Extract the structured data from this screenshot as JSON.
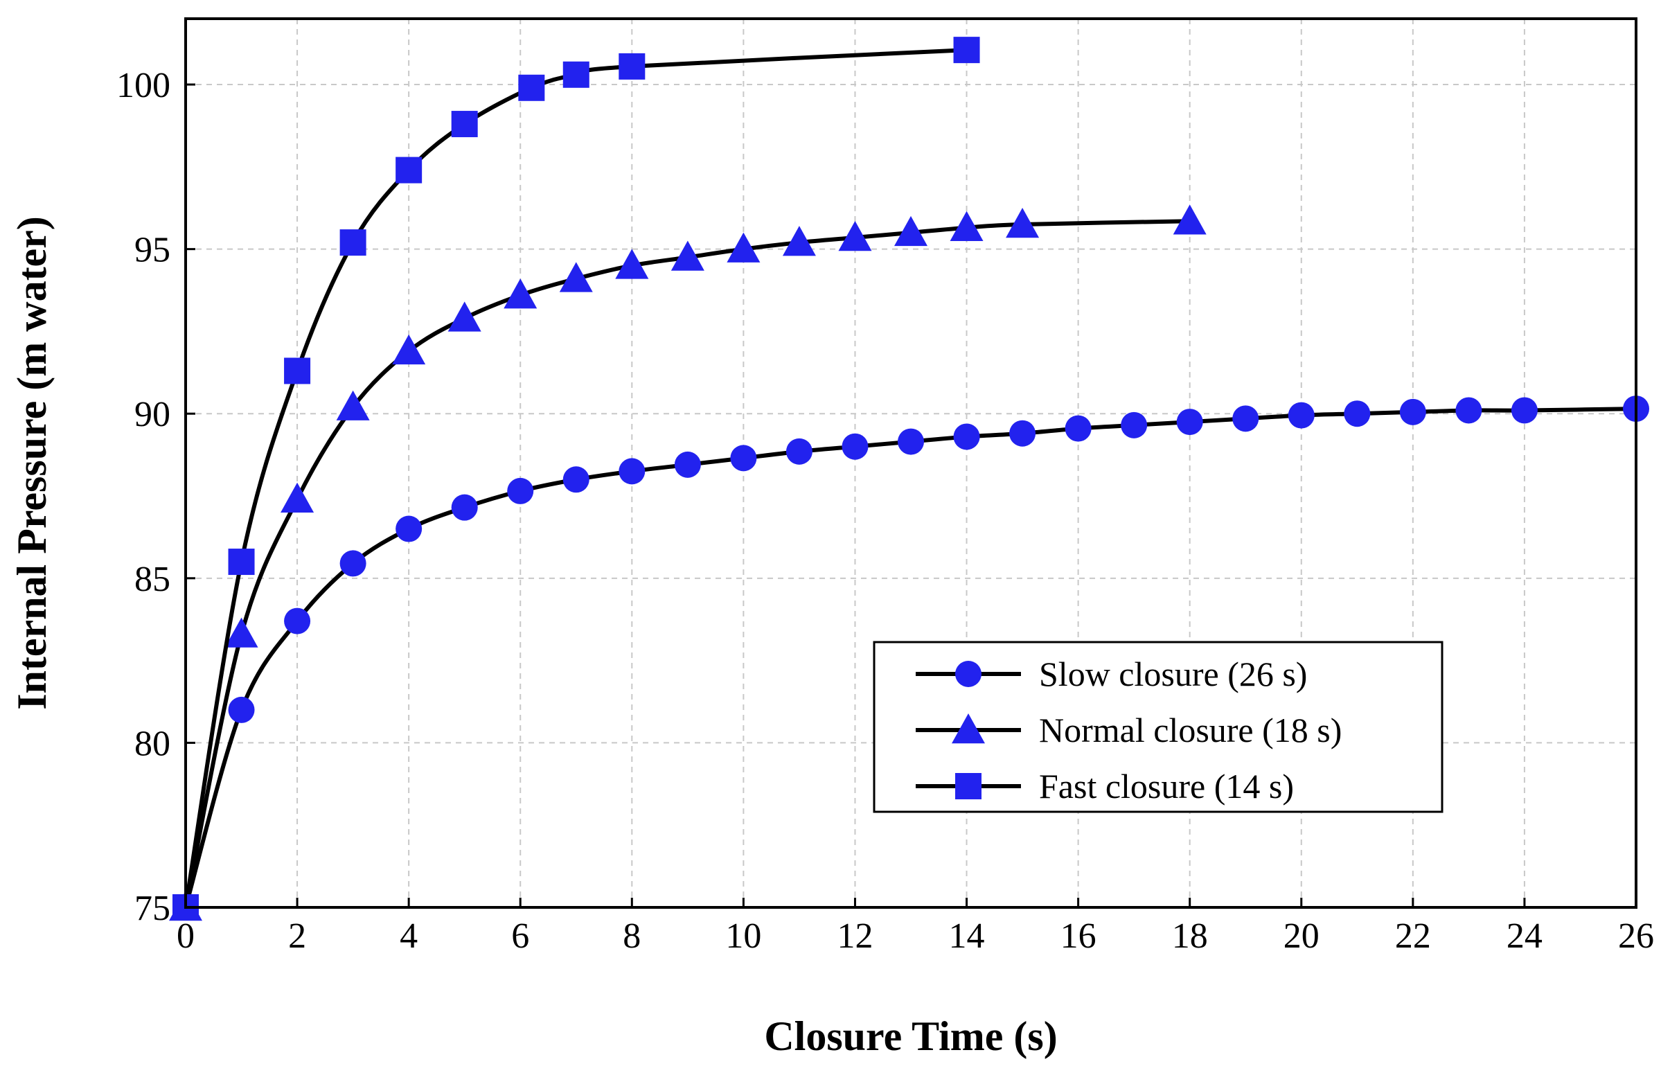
{
  "chart_data": {
    "type": "line",
    "title": "",
    "xlabel": "Closure Time (s)",
    "ylabel": "Internal Pressure (m water)",
    "xlim": [
      0,
      26
    ],
    "ylim": [
      75,
      102
    ],
    "xticks": [
      0,
      2,
      4,
      6,
      8,
      10,
      12,
      14,
      16,
      18,
      20,
      22,
      24,
      26
    ],
    "yticks": [
      75,
      80,
      85,
      90,
      95,
      100
    ],
    "grid": true,
    "legend_position": "bottom-right",
    "marker_color": "#2222ee",
    "line_color": "#000000",
    "series": [
      {
        "name": "Slow closure (26 s)",
        "marker": "circle",
        "x": [
          0,
          1,
          2,
          3,
          4,
          5,
          6,
          7,
          8,
          9,
          10,
          11,
          12,
          13,
          14,
          15,
          16,
          17,
          18,
          19,
          20,
          21,
          22,
          23,
          24,
          26
        ],
        "y": [
          75,
          81.0,
          83.7,
          85.45,
          86.5,
          87.15,
          87.65,
          88.0,
          88.25,
          88.45,
          88.65,
          88.85,
          89.0,
          89.15,
          89.3,
          89.4,
          89.55,
          89.65,
          89.75,
          89.85,
          89.95,
          90.0,
          90.05,
          90.1,
          90.1,
          90.15
        ]
      },
      {
        "name": "Normal closure (18 s)",
        "marker": "triangle",
        "x": [
          0,
          1,
          2,
          3,
          4,
          5,
          6,
          7,
          8,
          9,
          10,
          11,
          12,
          13,
          14,
          15,
          18
        ],
        "y": [
          75,
          83.3,
          87.4,
          90.2,
          91.9,
          92.9,
          93.6,
          94.1,
          94.5,
          94.75,
          95.0,
          95.2,
          95.35,
          95.5,
          95.65,
          95.75,
          95.85
        ]
      },
      {
        "name": "Fast closure (14 s)",
        "marker": "square",
        "x": [
          0,
          1,
          2,
          3,
          4,
          5,
          6.2,
          7,
          8,
          14
        ],
        "y": [
          75,
          85.5,
          91.3,
          95.2,
          97.4,
          98.8,
          99.9,
          100.3,
          100.55,
          101.05
        ]
      }
    ]
  }
}
